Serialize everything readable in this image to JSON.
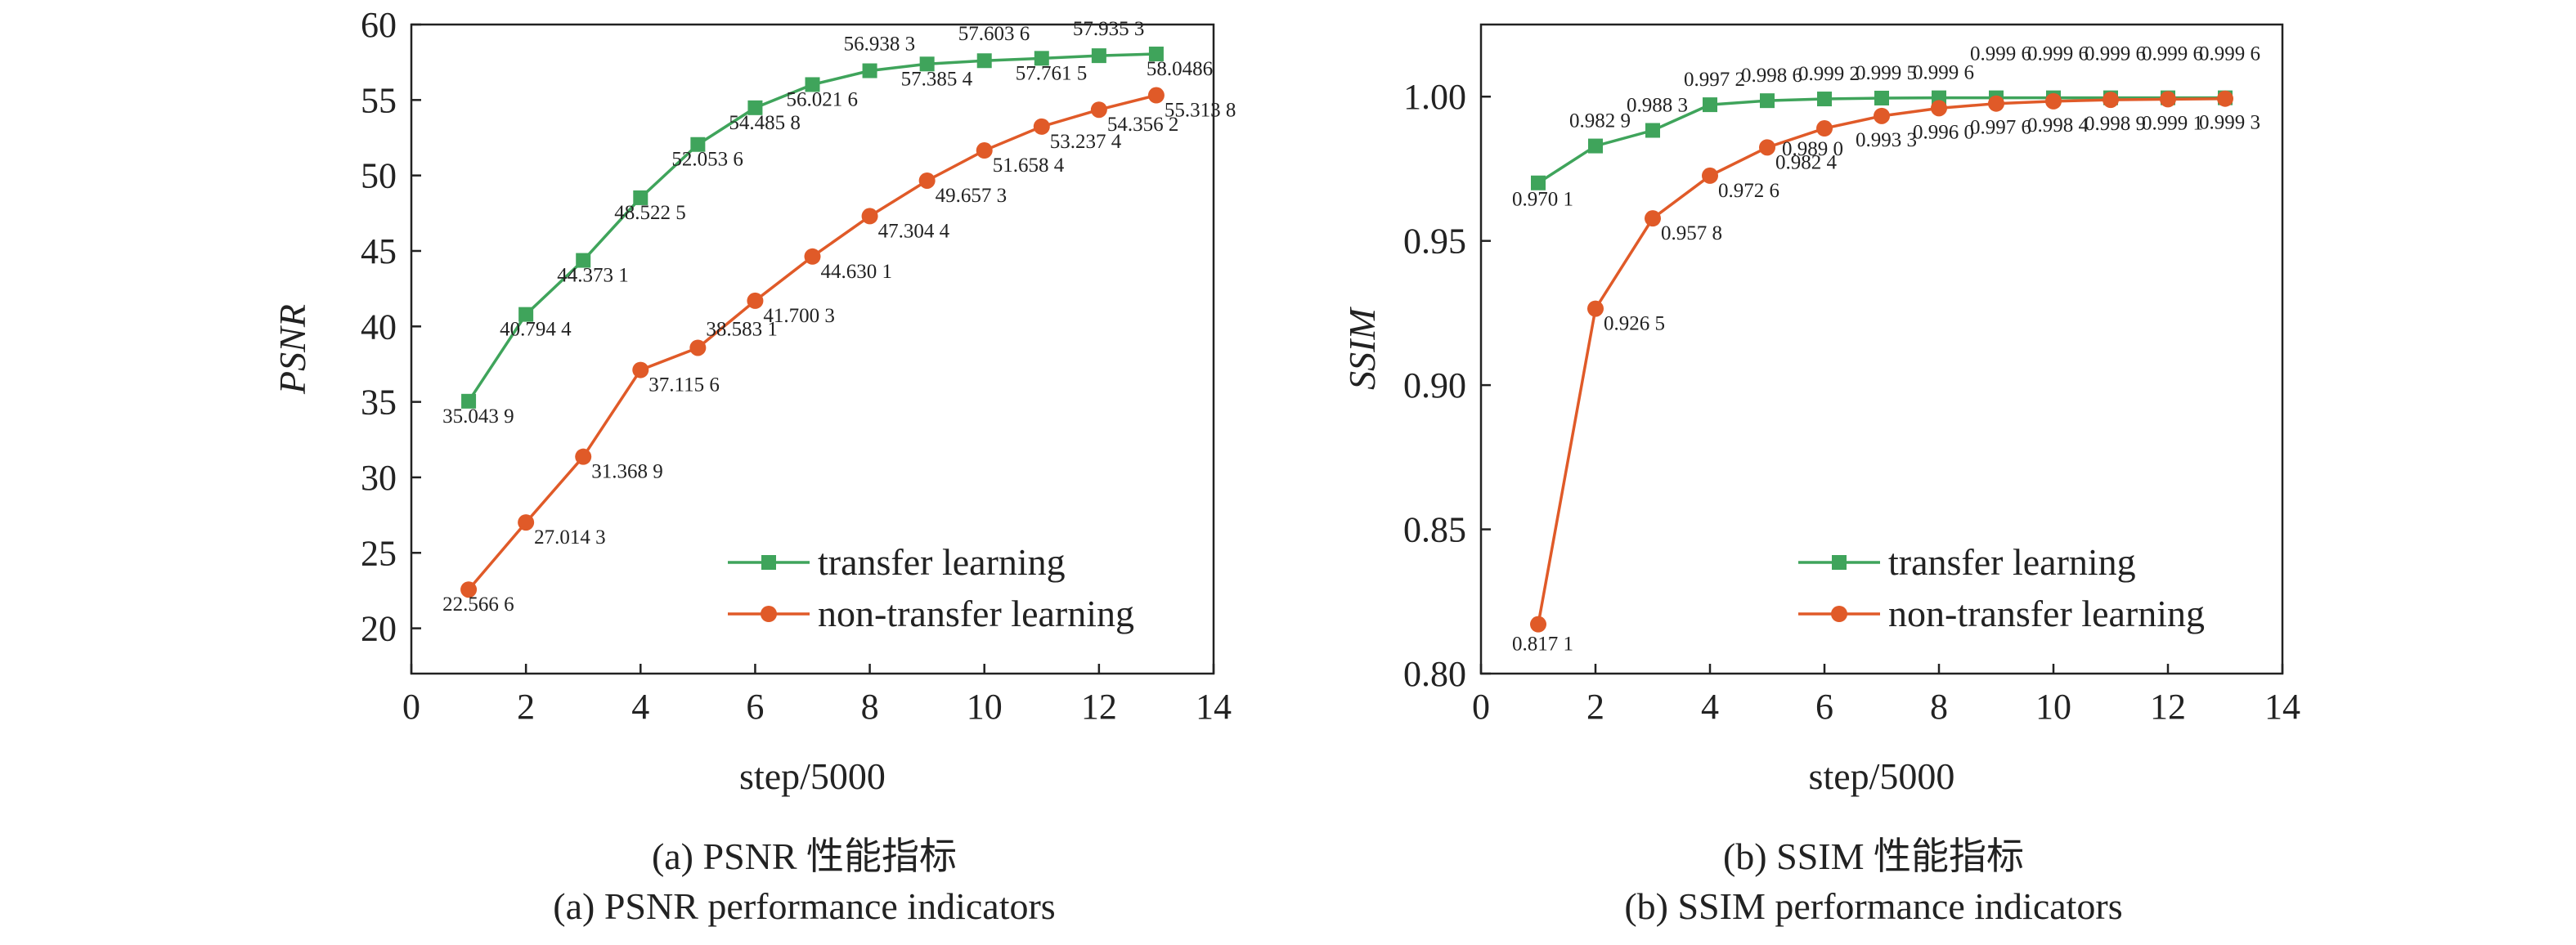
{
  "colors": {
    "transfer": "#3fa45b",
    "non_transfer": "#e05a28",
    "axis": "#222222"
  },
  "chart_data": [
    {
      "type": "line",
      "ylabel": "PSNR",
      "xlabel": "step/5000",
      "caption_cn": "(a) PSNR 性能指标",
      "caption_en": "(a) PSNR performance indicators",
      "xlim": [
        0,
        14
      ],
      "ylim": [
        17,
        60
      ],
      "xticks": [
        "0",
        "2",
        "4",
        "6",
        "8",
        "10",
        "12",
        "14"
      ],
      "xtick_values": [
        0,
        2,
        4,
        6,
        8,
        10,
        12,
        14
      ],
      "yticks": [
        "20",
        "25",
        "30",
        "35",
        "40",
        "45",
        "50",
        "55",
        "60"
      ],
      "ytick_values": [
        20,
        25,
        30,
        35,
        40,
        45,
        50,
        55,
        60
      ],
      "legend": [
        "transfer learning",
        "non-transfer learning"
      ],
      "series": [
        {
          "name": "transfer learning",
          "marker": "square",
          "x": [
            1,
            2,
            3,
            4,
            5,
            6,
            7,
            8,
            9,
            10,
            11,
            12,
            13
          ],
          "values": [
            35.0439,
            40.7944,
            44.3731,
            48.5225,
            52.0536,
            54.4858,
            56.0216,
            56.9383,
            57.3854,
            57.6036,
            57.7615,
            57.9353,
            58.0486
          ],
          "labels": [
            "35.043 9",
            "40.794 4",
            "44.373 1",
            "48.522 5",
            "52.053 6",
            "54.485 8",
            "56.021 6",
            "56.938 3",
            "57.385 4",
            "57.603 6",
            "57.761 5",
            "57.935 3",
            "58.0486"
          ]
        },
        {
          "name": "non-transfer learning",
          "marker": "circle",
          "x": [
            1,
            2,
            3,
            4,
            5,
            6,
            7,
            8,
            9,
            10,
            11,
            12,
            13
          ],
          "values": [
            22.5666,
            27.0143,
            31.3689,
            37.1156,
            38.5831,
            41.7003,
            44.6301,
            47.3044,
            49.6573,
            51.6584,
            53.2374,
            54.3562,
            55.3138
          ],
          "labels": [
            "22.566 6",
            "27.014 3",
            "31.368 9",
            "37.115 6",
            "38.583 1",
            "41.700 3",
            "44.630 1",
            "47.304 4",
            "49.657 3",
            "51.658 4",
            "53.237 4",
            "54.356 2",
            "55.313 8"
          ]
        }
      ]
    },
    {
      "type": "line",
      "ylabel": "SSIM",
      "xlabel": "step/5000",
      "caption_cn": "(b) SSIM 性能指标",
      "caption_en": "(b) SSIM performance indicators",
      "xlim": [
        0,
        14
      ],
      "ylim": [
        0.8,
        1.025
      ],
      "xticks": [
        "0",
        "2",
        "4",
        "6",
        "8",
        "10",
        "12",
        "14"
      ],
      "xtick_values": [
        0,
        2,
        4,
        6,
        8,
        10,
        12,
        14
      ],
      "yticks": [
        "0.80",
        "0.85",
        "0.90",
        "0.95",
        "1.00"
      ],
      "ytick_values": [
        0.8,
        0.85,
        0.9,
        0.95,
        1.0
      ],
      "legend": [
        "transfer learning",
        "non-transfer learning"
      ],
      "series": [
        {
          "name": "transfer learning",
          "marker": "square",
          "x": [
            1,
            2,
            3,
            4,
            5,
            6,
            7,
            8,
            9,
            10,
            11,
            12,
            13
          ],
          "values": [
            0.9701,
            0.9829,
            0.9883,
            0.9972,
            0.9986,
            0.9992,
            0.9995,
            0.9996,
            0.9996,
            0.9996,
            0.9996,
            0.9996,
            0.9996
          ],
          "labels": [
            "0.970 1",
            "0.982 9",
            "0.988 3",
            "0.997 2",
            "0.998 6",
            "0.999 2",
            "0.999 5",
            "0.999 6",
            "0.999 6",
            "0.999 6",
            "0.999 6",
            "0.999 6",
            "0.999 6"
          ]
        },
        {
          "name": "non-transfer learning",
          "marker": "circle",
          "x": [
            1,
            2,
            3,
            4,
            5,
            6,
            7,
            8,
            9,
            10,
            11,
            12,
            13
          ],
          "values": [
            0.8171,
            0.9265,
            0.9578,
            0.9726,
            0.9824,
            0.989,
            0.9933,
            0.996,
            0.9976,
            0.9984,
            0.9989,
            0.9991,
            0.9993
          ],
          "labels": [
            "0.817 1",
            "0.926 5",
            "0.957 8",
            "0.972 6",
            "0.982 4",
            "0.989 0",
            "0.993 3",
            "0.996 0",
            "0.997 6",
            "0.998 4",
            "0.998 9",
            "0.999 1",
            "0.999 3"
          ]
        }
      ]
    }
  ]
}
